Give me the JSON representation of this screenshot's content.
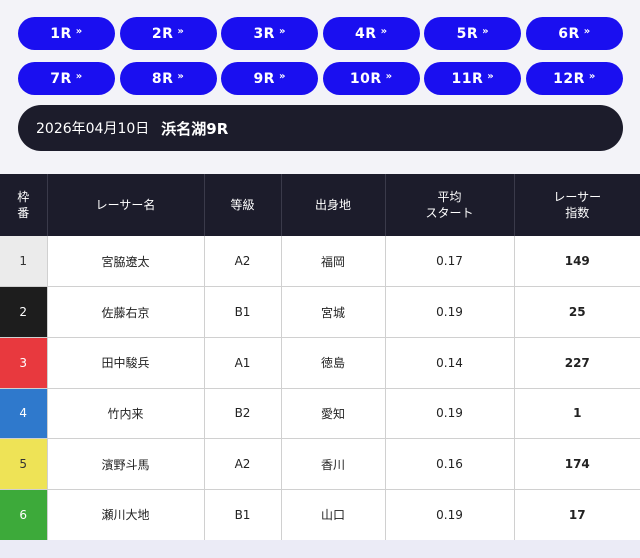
{
  "races": [
    {
      "label": "1R",
      "chevron": "»"
    },
    {
      "label": "2R",
      "chevron": "»"
    },
    {
      "label": "3R",
      "chevron": "»"
    },
    {
      "label": "4R",
      "chevron": "»"
    },
    {
      "label": "5R",
      "chevron": "»"
    },
    {
      "label": "6R",
      "chevron": "»"
    },
    {
      "label": "7R",
      "chevron": "»"
    },
    {
      "label": "8R",
      "chevron": "»"
    },
    {
      "label": "9R",
      "chevron": "»"
    },
    {
      "label": "10R",
      "chevron": "»"
    },
    {
      "label": "11R",
      "chevron": "»"
    },
    {
      "label": "12R",
      "chevron": "»"
    }
  ],
  "title": {
    "date": "2026年04月10日",
    "race": "浜名湖9R"
  },
  "table": {
    "headers": {
      "frame": [
        "枠",
        "番"
      ],
      "name": "レーサー名",
      "class": "等級",
      "origin": "出身地",
      "start": [
        "平均",
        "スタート"
      ],
      "score": [
        "レーサー",
        "指数"
      ]
    },
    "rows": [
      {
        "frame": "1",
        "name": "宮脇遼太",
        "class": "A2",
        "origin": "福岡",
        "start": "0.17",
        "score": "149",
        "frame_bg": "#ebebeb",
        "frame_fg": "#333333"
      },
      {
        "frame": "2",
        "name": "佐藤右京",
        "class": "B1",
        "origin": "宮城",
        "start": "0.19",
        "score": "25",
        "frame_bg": "#1d1d1d",
        "frame_fg": "#ffffff"
      },
      {
        "frame": "3",
        "name": "田中駿兵",
        "class": "A1",
        "origin": "徳島",
        "start": "0.14",
        "score": "227",
        "frame_bg": "#e8393e",
        "frame_fg": "#ffffff"
      },
      {
        "frame": "4",
        "name": "竹内来",
        "class": "B2",
        "origin": "愛知",
        "start": "0.19",
        "score": "1",
        "frame_bg": "#2f79cc",
        "frame_fg": "#ffffff"
      },
      {
        "frame": "5",
        "name": "濱野斗馬",
        "class": "A2",
        "origin": "香川",
        "start": "0.16",
        "score": "174",
        "frame_bg": "#eee356",
        "frame_fg": "#333333"
      },
      {
        "frame": "6",
        "name": "瀬川大地",
        "class": "B1",
        "origin": "山口",
        "start": "0.19",
        "score": "17",
        "frame_bg": "#3daa3a",
        "frame_fg": "#ffffff"
      }
    ]
  },
  "colors": {
    "accent": "#1a0ff0",
    "header_dark": "#1c1c2b"
  }
}
